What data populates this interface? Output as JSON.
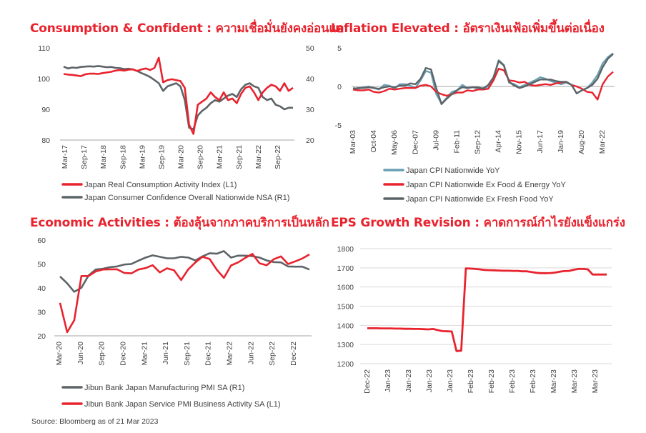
{
  "source": "Source: Bloomberg as of 21 Mar 2023",
  "colors": {
    "red": "#e8232e",
    "gray": "#5d6468",
    "teal": "#6b9fb3",
    "title": "#e8232e"
  },
  "chart_data": [
    {
      "id": "consumption",
      "type": "line",
      "title": "Consumption & Confident : ความเชื่อมั่นยังคงอ่อนแอ",
      "x_ticks": [
        "Mar-17",
        "Sep-17",
        "Mar-18",
        "Sep-18",
        "Mar-19",
        "Sep-19",
        "Mar-20",
        "Sep-20",
        "Mar-21",
        "Sep-21",
        "Mar-22",
        "Sep-22"
      ],
      "ylim_left": [
        80,
        110
      ],
      "yticks_left": [
        80,
        90,
        100,
        110
      ],
      "ylim_right": [
        20,
        50
      ],
      "yticks_right": [
        20,
        30,
        40,
        50
      ],
      "series": [
        {
          "name": "Japan Real Consumption Activity Index  (L1)",
          "color": "#e8232e",
          "axis": "left",
          "values": [
            101.5,
            101.3,
            101.2,
            101.0,
            100.8,
            101.4,
            101.6,
            101.6,
            101.5,
            101.8,
            102.0,
            102.2,
            102.6,
            102.8,
            102.6,
            102.9,
            103.0,
            102.5,
            103.0,
            103.3,
            102.8,
            103.5,
            106.8,
            98.8,
            99.5,
            99.8,
            99.5,
            99.2,
            97.0,
            85.0,
            82.0,
            91.5,
            92.5,
            93.5,
            95.5,
            94.0,
            93.0,
            95.5,
            93.0,
            93.5,
            92.0,
            95.0,
            97.0,
            97.5,
            95.5,
            93.0,
            95.5,
            97.0,
            98.0,
            97.5,
            96.0,
            98.5,
            96.0,
            97.0
          ]
        },
        {
          "name": "Japan Consumer Confidence Overall Nationwide NSA  (R1)",
          "color": "#5d6468",
          "axis": "right",
          "values": [
            43.9,
            43.3,
            43.6,
            43.5,
            43.8,
            43.9,
            44.0,
            43.9,
            44.1,
            43.9,
            43.7,
            43.8,
            43.5,
            43.4,
            43.1,
            43.2,
            43.0,
            42.5,
            41.8,
            41.2,
            40.5,
            39.5,
            38.5,
            36.0,
            37.5,
            38.0,
            38.5,
            37.5,
            33.0,
            24.0,
            23.5,
            28.0,
            29.5,
            30.5,
            32.0,
            33.0,
            32.5,
            33.5,
            34.5,
            35.0,
            34.0,
            36.5,
            38.0,
            38.5,
            37.5,
            37.0,
            34.0,
            33.0,
            33.5,
            31.5,
            31.0,
            30.0,
            30.5,
            30.5
          ]
        }
      ]
    },
    {
      "id": "inflation",
      "type": "line",
      "title": "Inflation Elevated : อัตราเงินเฟ้อเพิ่มขึ้นต่อเนื่อง",
      "x_ticks": [
        "Mar-03",
        "Oct-04",
        "May-06",
        "Dec-07",
        "Jul-09",
        "Feb-11",
        "Sep-12",
        "Apr-14",
        "Nov-15",
        "Jun-17",
        "Jan-19",
        "Aug-20",
        "Mar-22"
      ],
      "ylim": [
        -5,
        5
      ],
      "yticks": [
        -5,
        0,
        5
      ],
      "series": [
        {
          "name": "Japan CPI Nationwide YoY",
          "color": "#6b9fb3",
          "values": [
            -0.2,
            -0.3,
            -0.1,
            0.0,
            -0.2,
            -0.4,
            0.2,
            0.1,
            -0.3,
            0.3,
            0.3,
            0.1,
            -0.2,
            0.8,
            2.0,
            1.8,
            -1.0,
            -2.2,
            -1.5,
            -0.7,
            -0.5,
            0.2,
            -0.2,
            -0.1,
            -0.3,
            -0.2,
            0.0,
            1.0,
            3.4,
            2.8,
            0.5,
            0.3,
            -0.1,
            0.2,
            0.5,
            0.8,
            1.2,
            1.0,
            0.7,
            0.5,
            0.3,
            0.5,
            0.2,
            -0.9,
            -0.5,
            -0.2,
            0.5,
            1.5,
            3.0,
            3.8,
            4.3
          ]
        },
        {
          "name": "Japan CPI Nationwide Ex Food & Energy YoY",
          "color": "#e8232e",
          "values": [
            -0.4,
            -0.5,
            -0.5,
            -0.4,
            -0.7,
            -0.8,
            -0.6,
            -0.3,
            -0.4,
            -0.3,
            -0.2,
            -0.2,
            -0.2,
            0.1,
            0.2,
            0.0,
            -0.7,
            -1.0,
            -1.2,
            -1.0,
            -0.8,
            -0.8,
            -0.5,
            -0.6,
            -0.4,
            -0.4,
            -0.3,
            0.8,
            2.3,
            2.1,
            0.8,
            0.7,
            0.5,
            0.6,
            0.2,
            0.1,
            0.2,
            0.3,
            0.2,
            0.4,
            0.5,
            0.6,
            0.2,
            0.0,
            -0.3,
            -0.7,
            -0.8,
            -1.7,
            0.3,
            1.3,
            1.9
          ]
        },
        {
          "name": "Japan CPI Nationwide Ex Fresh Food YoY",
          "color": "#5d6468",
          "values": [
            -0.3,
            -0.2,
            -0.2,
            -0.1,
            -0.2,
            -0.3,
            -0.1,
            0.0,
            -0.1,
            0.1,
            0.1,
            0.4,
            0.3,
            1.0,
            2.4,
            2.2,
            -0.2,
            -2.3,
            -1.6,
            -1.0,
            -0.5,
            -0.1,
            -0.2,
            -0.1,
            -0.1,
            -0.3,
            0.2,
            1.2,
            3.3,
            2.7,
            0.6,
            0.1,
            -0.2,
            0.0,
            0.3,
            0.6,
            0.9,
            0.9,
            0.9,
            0.7,
            0.6,
            0.6,
            0.2,
            -0.9,
            -0.5,
            -0.2,
            0.2,
            1.0,
            2.5,
            3.6,
            4.2
          ]
        }
      ]
    },
    {
      "id": "activity",
      "type": "line",
      "title": "Economic Activities : ต้องลุ้นจากภาคบริการเป็นหลัก",
      "x_ticks": [
        "Mar-20",
        "Jun-20",
        "Sep-20",
        "Dec-20",
        "Mar-21",
        "Jun-21",
        "Sep-21",
        "Dec-21",
        "Mar-22",
        "Jun-22",
        "Sep-22",
        "Dec-22"
      ],
      "ylim": [
        20,
        60
      ],
      "yticks": [
        20,
        30,
        40,
        50,
        60
      ],
      "series": [
        {
          "name": "Jibun Bank Japan Manufacturing PMI SA  (R1)",
          "color": "#5d6468",
          "values": [
            44.8,
            41.9,
            38.4,
            40.1,
            45.2,
            47.7,
            48.0,
            48.7,
            49.0,
            49.8,
            50.0,
            51.4,
            52.7,
            53.6,
            53.0,
            52.4,
            52.4,
            53.0,
            52.7,
            51.5,
            53.2,
            54.5,
            54.3,
            55.4,
            52.7,
            53.5,
            53.5,
            53.3,
            52.7,
            51.5,
            50.8,
            50.7,
            49.0,
            48.9,
            48.9,
            47.7
          ]
        },
        {
          "name": "Jibun Bank Japan Service PMI Business Activity SA  (L1)",
          "color": "#e8232e",
          "values": [
            33.8,
            21.5,
            26.5,
            45.0,
            45.0,
            46.9,
            47.7,
            47.8,
            47.8,
            46.3,
            46.1,
            47.7,
            48.3,
            49.5,
            46.5,
            48.2,
            47.4,
            43.3,
            47.8,
            50.7,
            53.0,
            52.1,
            47.6,
            44.2,
            49.4,
            50.7,
            52.6,
            54.2,
            50.3,
            49.5,
            52.0,
            53.2,
            50.0,
            51.1,
            52.3,
            54.0
          ]
        }
      ]
    },
    {
      "id": "eps",
      "type": "line",
      "title": "EPS Growth Revision : คาดการณ์กำไรยังแข็งแกร่ง",
      "x_ticks": [
        "Dec-22",
        "Jan-23",
        "Jan-23",
        "Jan-23",
        "Jan-23",
        "Feb-23",
        "Feb-23",
        "Feb-23",
        "Feb-23",
        "Mar-23",
        "Mar-23",
        "Mar-23"
      ],
      "ylim": [
        1200,
        1800
      ],
      "yticks": [
        1200,
        1300,
        1400,
        1500,
        1600,
        1700,
        1800
      ],
      "series": [
        {
          "name": "",
          "color": "#e8232e",
          "values": [
            1385,
            1385,
            1385,
            1384,
            1384,
            1384,
            1383,
            1383,
            1382,
            1382,
            1381,
            1381,
            1380,
            1379,
            1381,
            1375,
            1370,
            1369,
            1368,
            1266,
            1268,
            1697,
            1696,
            1694,
            1692,
            1689,
            1688,
            1687,
            1686,
            1685,
            1685,
            1684,
            1684,
            1682,
            1682,
            1678,
            1674,
            1672,
            1672,
            1673,
            1675,
            1680,
            1683,
            1684,
            1690,
            1694,
            1694,
            1692,
            1665,
            1665,
            1665,
            1665
          ]
        }
      ]
    }
  ]
}
